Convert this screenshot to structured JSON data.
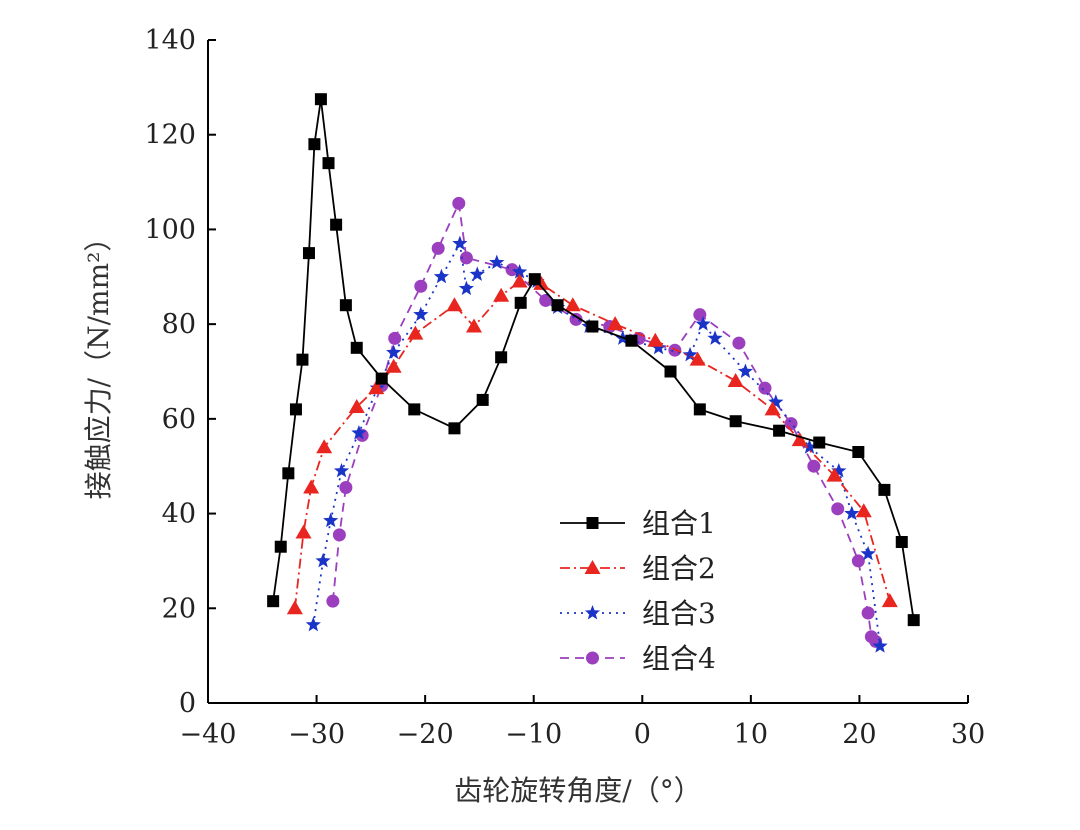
{
  "chart_data": {
    "type": "line",
    "title": "",
    "xlabel": "齿轮旋转角度/（°）",
    "ylabel": "接触应力/（N/mm²）",
    "xlim": [
      -40,
      30
    ],
    "ylim": [
      0,
      140
    ],
    "x_ticks": [
      -40,
      -30,
      -20,
      -10,
      0,
      10,
      20,
      30
    ],
    "y_ticks": [
      0,
      20,
      40,
      60,
      80,
      100,
      120,
      140
    ],
    "x_tick_labels": [
      "−40",
      "−30",
      "−20",
      "−10",
      "0",
      "10",
      "20",
      "30"
    ],
    "y_tick_labels": [
      "0",
      "20",
      "40",
      "60",
      "80",
      "100",
      "120",
      "140"
    ],
    "grid": false,
    "legend_position": "bottom-right",
    "series": [
      {
        "name": "组合1",
        "color": "#000000",
        "marker": "square",
        "line_style": "solid",
        "x": [
          -34.0,
          -33.3,
          -32.6,
          -31.9,
          -31.3,
          -30.7,
          -30.2,
          -29.6,
          -28.9,
          -28.2,
          -27.3,
          -26.3,
          -24.0,
          -21.0,
          -17.3,
          -14.7,
          -13.0,
          -11.2,
          -9.9,
          -7.8,
          -4.6,
          -1.0,
          2.6,
          5.3,
          8.6,
          12.6,
          16.3,
          19.9,
          22.3,
          23.9,
          25.0
        ],
        "y": [
          21.5,
          33.0,
          48.5,
          62.0,
          72.5,
          95.0,
          118.0,
          127.5,
          114.0,
          101.0,
          84.0,
          75.0,
          68.5,
          62.0,
          58.0,
          64.0,
          73.0,
          84.5,
          89.5,
          84.0,
          79.5,
          76.5,
          70.0,
          62.0,
          59.5,
          57.5,
          55.0,
          53.0,
          45.0,
          34.0,
          17.5
        ]
      },
      {
        "name": "组合2",
        "color": "#e8251f",
        "marker": "triangle",
        "line_style": "dashdot",
        "x": [
          -32.0,
          -31.2,
          -30.5,
          -29.3,
          -26.3,
          -24.5,
          -22.9,
          -20.9,
          -17.3,
          -15.5,
          -13.0,
          -11.3,
          -9.3,
          -6.4,
          -2.5,
          1.2,
          5.1,
          8.6,
          12.0,
          14.5,
          17.7,
          20.4,
          22.8
        ],
        "y": [
          20.0,
          36.0,
          45.5,
          54.0,
          62.5,
          66.5,
          71.0,
          78.0,
          84.0,
          79.5,
          86.0,
          89.0,
          88.5,
          84.0,
          80.0,
          76.5,
          72.5,
          68.0,
          62.0,
          55.5,
          48.0,
          40.5,
          21.5
        ]
      },
      {
        "name": "组合3",
        "color": "#1a34c8",
        "marker": "star",
        "line_style": "dotted",
        "x": [
          -30.3,
          -29.4,
          -28.7,
          -27.7,
          -26.1,
          -24.4,
          -22.9,
          -20.4,
          -18.5,
          -16.8,
          -16.2,
          -15.2,
          -13.4,
          -11.3,
          -9.7,
          -7.8,
          -4.9,
          -1.8,
          1.5,
          4.4,
          5.6,
          6.7,
          9.5,
          12.3,
          15.4,
          18.1,
          19.3,
          20.8,
          21.9
        ],
        "y": [
          16.5,
          30.0,
          38.5,
          49.0,
          57.0,
          66.5,
          74.0,
          82.0,
          90.0,
          97.0,
          87.5,
          90.5,
          93.0,
          91.0,
          89.0,
          83.5,
          79.5,
          77.0,
          75.0,
          73.5,
          80.0,
          77.0,
          70.0,
          63.5,
          54.0,
          49.0,
          40.0,
          31.5,
          12.0
        ]
      },
      {
        "name": "组合4",
        "color": "#9b3fbf",
        "marker": "circle",
        "line_style": "dashed",
        "x": [
          -28.5,
          -27.9,
          -27.3,
          -25.8,
          -24.0,
          -22.8,
          -20.4,
          -18.8,
          -16.9,
          -16.2,
          -12.0,
          -8.9,
          -6.1,
          -3.0,
          -0.3,
          3.0,
          5.3,
          8.9,
          11.3,
          13.7,
          15.8,
          18.0,
          19.9,
          20.8,
          21.1,
          21.5
        ],
        "y": [
          21.5,
          35.5,
          45.5,
          56.5,
          67.0,
          77.0,
          88.0,
          96.0,
          105.5,
          94.0,
          91.5,
          85.0,
          81.0,
          79.5,
          77.0,
          74.5,
          82.0,
          76.0,
          66.5,
          59.0,
          50.0,
          41.0,
          30.0,
          19.0,
          14.0,
          13.0
        ]
      }
    ]
  }
}
